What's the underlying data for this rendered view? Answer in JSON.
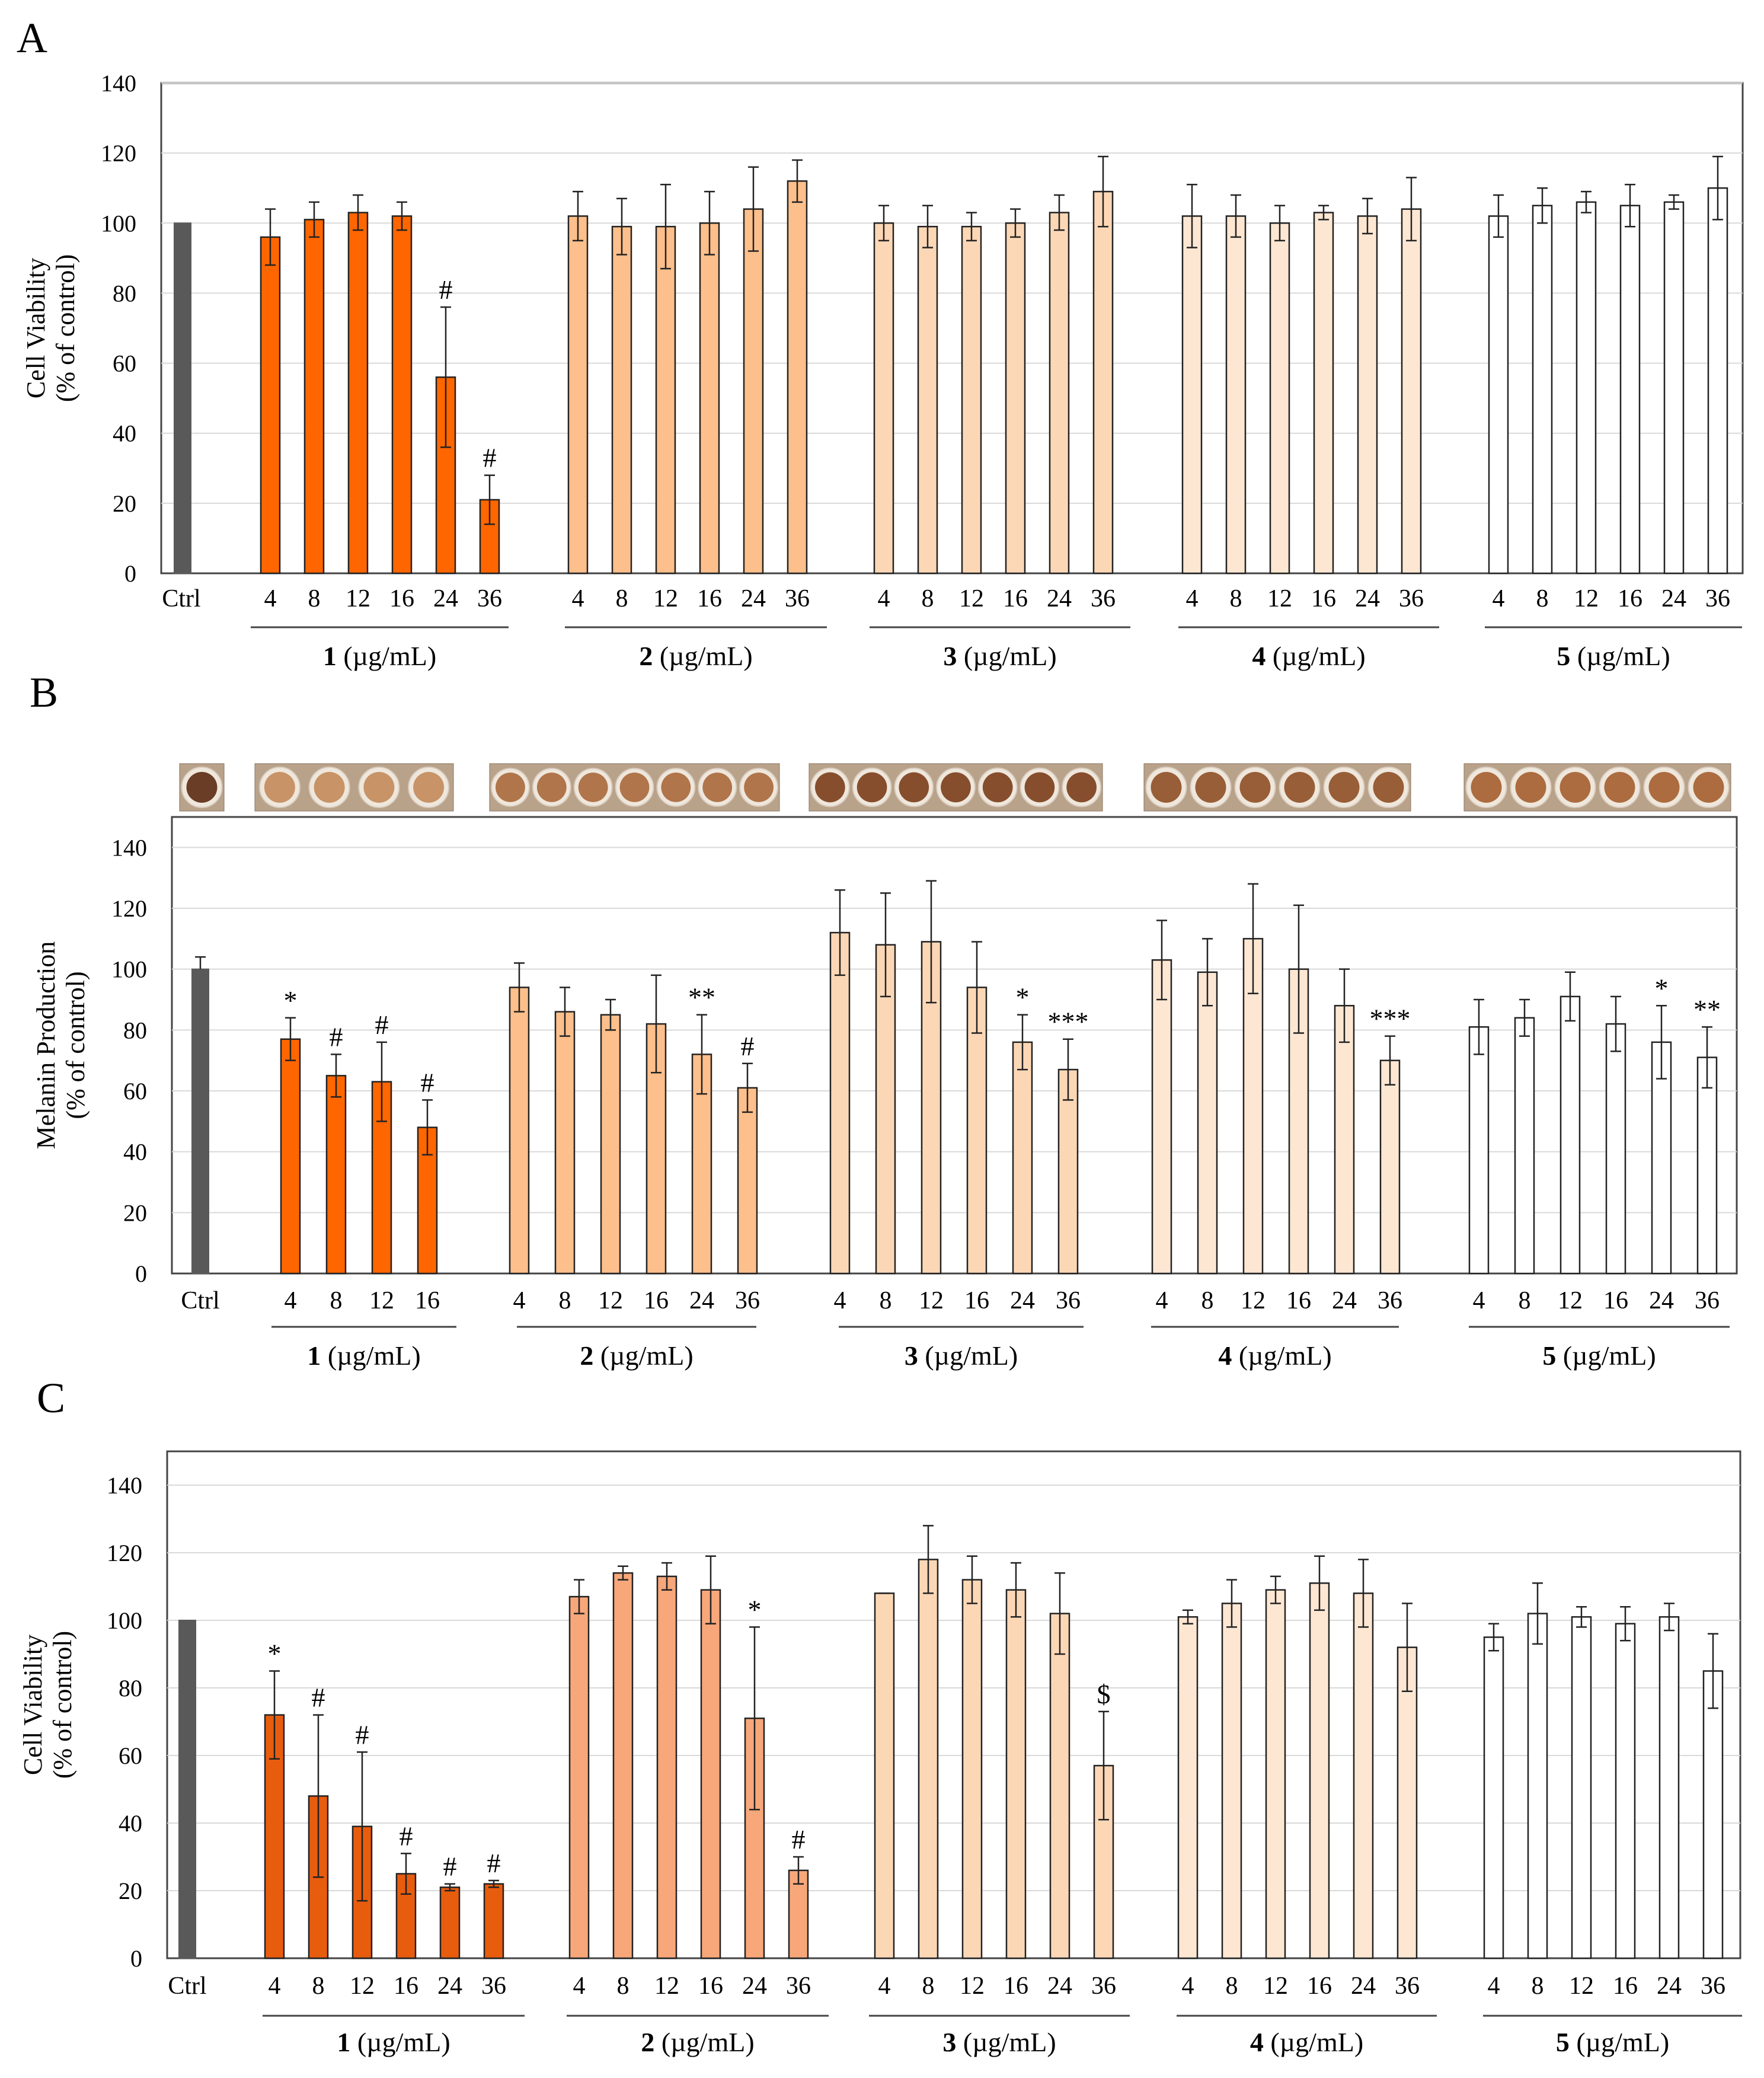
{
  "figure": {
    "panels": [
      "A",
      "B",
      "C"
    ],
    "ctrl_label": "Ctrl",
    "group_unit": " (µg/mL)",
    "colors": {
      "ctrl": "#595959",
      "g1": "#ff6600",
      "g1c": "#e85c0e",
      "g2": "#fdbf8b",
      "g2c": "#f7a77a",
      "g3": "#fcd7b6",
      "g4": "#fde7d3",
      "g5": "#ffffff",
      "edge": "#222222",
      "grid": "#d9d9d9"
    },
    "well_strip_icons": [
      "wells-ctrl",
      "wells-1",
      "wells-2",
      "wells-3",
      "wells-4",
      "wells-5"
    ]
  },
  "chart_data": [
    {
      "panel": "A",
      "type": "bar",
      "ylabel_line1": "Cell Viability",
      "ylabel_line2": "(% of control)",
      "ylim": [
        0,
        140
      ],
      "yticks": [
        0,
        20,
        40,
        60,
        80,
        100,
        120,
        140
      ],
      "ctrl": {
        "value": 100,
        "error": 0
      },
      "groups": [
        {
          "name": "1",
          "doses": [
            "4",
            "8",
            "12",
            "16",
            "24",
            "36"
          ],
          "values": [
            96,
            101,
            103,
            102,
            56,
            21
          ],
          "errors": [
            8,
            5,
            5,
            4,
            20,
            7
          ],
          "sig": [
            "",
            "",
            "",
            "",
            "#",
            "#"
          ]
        },
        {
          "name": "2",
          "doses": [
            "4",
            "8",
            "12",
            "16",
            "24",
            "36"
          ],
          "values": [
            102,
            99,
            99,
            100,
            104,
            112
          ],
          "errors": [
            7,
            8,
            12,
            9,
            12,
            6
          ],
          "sig": [
            "",
            "",
            "",
            "",
            "",
            ""
          ]
        },
        {
          "name": "3",
          "doses": [
            "4",
            "8",
            "12",
            "16",
            "24",
            "36"
          ],
          "values": [
            100,
            99,
            99,
            100,
            103,
            109
          ],
          "errors": [
            5,
            6,
            4,
            4,
            5,
            10
          ],
          "sig": [
            "",
            "",
            "",
            "",
            "",
            ""
          ]
        },
        {
          "name": "4",
          "doses": [
            "4",
            "8",
            "12",
            "16",
            "24",
            "36"
          ],
          "values": [
            102,
            102,
            100,
            103,
            102,
            104
          ],
          "errors": [
            9,
            6,
            5,
            2,
            5,
            9
          ],
          "sig": [
            "",
            "",
            "",
            "",
            "",
            ""
          ]
        },
        {
          "name": "5",
          "doses": [
            "4",
            "8",
            "12",
            "16",
            "24",
            "36"
          ],
          "values": [
            102,
            105,
            106,
            105,
            106,
            110
          ],
          "errors": [
            6,
            5,
            3,
            6,
            2,
            9
          ],
          "sig": [
            "",
            "",
            "",
            "",
            "",
            ""
          ]
        }
      ]
    },
    {
      "panel": "B",
      "type": "bar",
      "ylabel_line1": "Melanin Production",
      "ylabel_line2": "(% of control)",
      "ylim": [
        0,
        150
      ],
      "yticks": [
        0,
        20,
        40,
        60,
        80,
        100,
        120,
        140
      ],
      "ctrl": {
        "value": 100,
        "error": 4
      },
      "groups": [
        {
          "name": "1",
          "doses": [
            "4",
            "8",
            "12",
            "16"
          ],
          "values": [
            77,
            65,
            63,
            48
          ],
          "errors": [
            7,
            7,
            13,
            9
          ],
          "sig": [
            "*",
            "#",
            "#",
            "#"
          ]
        },
        {
          "name": "2",
          "doses": [
            "4",
            "8",
            "12",
            "16",
            "24",
            "36"
          ],
          "values": [
            94,
            86,
            85,
            82,
            72,
            61
          ],
          "errors": [
            8,
            8,
            5,
            16,
            13,
            8
          ],
          "sig": [
            "",
            "",
            "",
            "",
            "**",
            "#"
          ]
        },
        {
          "name": "3",
          "doses": [
            "4",
            "8",
            "12",
            "16",
            "24",
            "36"
          ],
          "values": [
            112,
            108,
            109,
            94,
            76,
            67
          ],
          "errors": [
            14,
            17,
            20,
            15,
            9,
            10
          ],
          "sig": [
            "",
            "",
            "",
            "",
            "*",
            "***"
          ]
        },
        {
          "name": "4",
          "doses": [
            "4",
            "8",
            "12",
            "16",
            "24",
            "36"
          ],
          "values": [
            103,
            99,
            110,
            100,
            88,
            70
          ],
          "errors": [
            13,
            11,
            18,
            21,
            12,
            8
          ],
          "sig": [
            "",
            "",
            "",
            "",
            "",
            "***"
          ]
        },
        {
          "name": "5",
          "doses": [
            "4",
            "8",
            "12",
            "16",
            "24",
            "36"
          ],
          "values": [
            81,
            84,
            91,
            82,
            76,
            71
          ],
          "errors": [
            9,
            6,
            8,
            9,
            12,
            10
          ],
          "sig": [
            "",
            "",
            "",
            "",
            "*",
            "**"
          ]
        }
      ]
    },
    {
      "panel": "C",
      "type": "bar",
      "ylabel_line1": "Cell Viability",
      "ylabel_line2": "(% of control)",
      "ylim": [
        0,
        150
      ],
      "yticks": [
        0,
        20,
        40,
        60,
        80,
        100,
        120,
        140
      ],
      "ctrl": {
        "value": 100,
        "error": 0
      },
      "groups": [
        {
          "name": "1",
          "doses": [
            "4",
            "8",
            "12",
            "16",
            "24",
            "36"
          ],
          "values": [
            72,
            48,
            39,
            25,
            21,
            22
          ],
          "errors": [
            13,
            24,
            22,
            6,
            1,
            1
          ],
          "sig": [
            "*",
            "#",
            "#",
            "#",
            "#",
            "#"
          ]
        },
        {
          "name": "2",
          "doses": [
            "4",
            "8",
            "12",
            "16",
            "24",
            "36"
          ],
          "values": [
            107,
            114,
            113,
            109,
            71,
            26
          ],
          "errors": [
            5,
            2,
            4,
            10,
            27,
            4
          ],
          "sig": [
            "",
            "",
            "",
            "",
            "*",
            "#"
          ]
        },
        {
          "name": "3",
          "doses": [
            "4",
            "8",
            "12",
            "16",
            "24",
            "36"
          ],
          "values": [
            108,
            118,
            112,
            109,
            102,
            57
          ],
          "errors": [
            0,
            10,
            7,
            8,
            12,
            16
          ],
          "sig": [
            "",
            "",
            "",
            "",
            "",
            "$"
          ]
        },
        {
          "name": "4",
          "doses": [
            "4",
            "8",
            "12",
            "16",
            "24",
            "36"
          ],
          "values": [
            101,
            105,
            109,
            111,
            108,
            92
          ],
          "errors": [
            2,
            7,
            4,
            8,
            10,
            13
          ],
          "sig": [
            "",
            "",
            "",
            "",
            "",
            ""
          ]
        },
        {
          "name": "5",
          "doses": [
            "4",
            "8",
            "12",
            "16",
            "24",
            "36"
          ],
          "values": [
            95,
            102,
            101,
            99,
            101,
            85
          ],
          "errors": [
            4,
            9,
            3,
            5,
            4,
            11
          ],
          "sig": [
            "",
            "",
            "",
            "",
            "",
            ""
          ]
        }
      ]
    }
  ]
}
